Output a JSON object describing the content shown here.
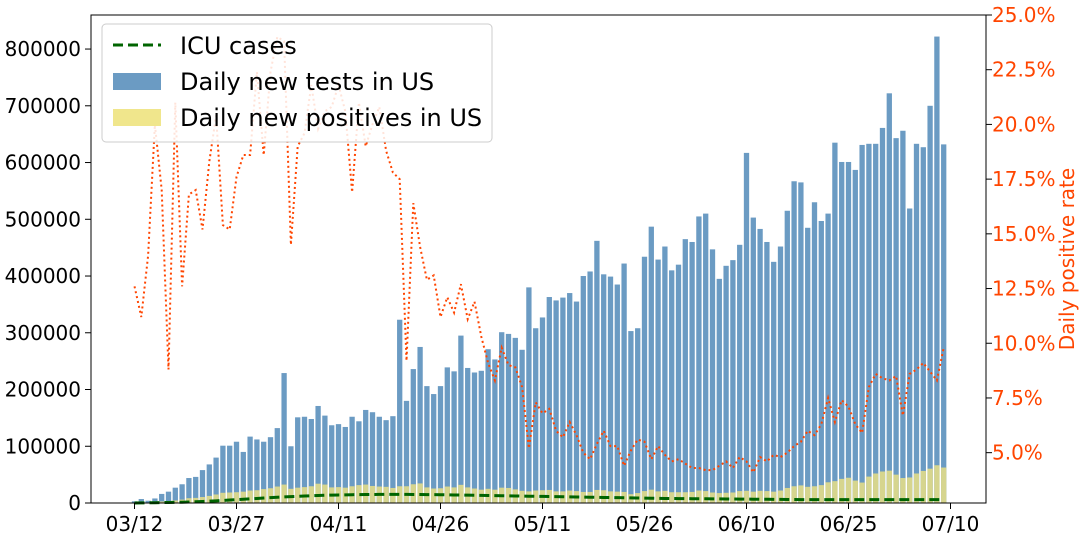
{
  "chart_data": {
    "type": "bar",
    "title": "",
    "xlabel": "",
    "ylabel_left": "",
    "ylabel_right": "Daily positive rate",
    "start_date": "03/12",
    "x_tick_labels": [
      "03/12",
      "03/27",
      "04/11",
      "04/26",
      "05/11",
      "05/26",
      "06/10",
      "06/25",
      "07/10"
    ],
    "ylim_left": [
      0,
      860000
    ],
    "yticks_left": [
      "0",
      "100000",
      "200000",
      "300000",
      "400000",
      "500000",
      "600000",
      "700000",
      "800000"
    ],
    "ylim_right": [
      2.7,
      25.0
    ],
    "yticks_right": [
      "5.0%",
      "7.5%",
      "10.0%",
      "12.5%",
      "15.0%",
      "17.5%",
      "20.0%",
      "22.5%",
      "25.0%"
    ],
    "legend": {
      "position": "top-left",
      "entries": [
        "ICU cases",
        "Daily new tests in US",
        "Daily new positives in US"
      ]
    },
    "colors": {
      "tests": "#6b9bc3",
      "positives": "#d6d58e",
      "positives_legend": "#f0e68c",
      "icu": "#006400",
      "rate": "#ff4500"
    },
    "series": [
      {
        "name": "Daily new tests in US",
        "kind": "bar",
        "values": [
          3000,
          7000,
          4000,
          8000,
          16000,
          20000,
          27000,
          33000,
          44000,
          46000,
          58000,
          68000,
          80000,
          101000,
          101000,
          108000,
          90000,
          117000,
          112000,
          108000,
          116000,
          132000,
          229000,
          100000,
          151000,
          152000,
          148000,
          171000,
          154000,
          137000,
          139000,
          134000,
          152000,
          144000,
          164000,
          160000,
          152000,
          146000,
          153000,
          323000,
          180000,
          236000,
          275000,
          206000,
          192000,
          206000,
          239000,
          232000,
          295000,
          238000,
          230000,
          233000,
          271000,
          253000,
          301000,
          298000,
          291000,
          270000,
          380000,
          308000,
          327000,
          363000,
          357000,
          362000,
          370000,
          355000,
          400000,
          408000,
          462000,
          403000,
          399000,
          385000,
          422000,
          303000,
          308000,
          434000,
          487000,
          429000,
          452000,
          410000,
          420000,
          465000,
          460000,
          505000,
          510000,
          447000,
          395000,
          418000,
          428000,
          455000,
          617000,
          503000,
          483000,
          460000,
          425000,
          452000,
          515000,
          567000,
          565000,
          485000,
          530000,
          497000,
          510000,
          635000,
          601000,
          601000,
          587000,
          631000,
          633000,
          633000,
          661000,
          722000,
          643000,
          656000,
          519000,
          633000,
          627000,
          700000,
          822000,
          632000
        ]
      },
      {
        "name": "Daily new positives in US",
        "kind": "bar",
        "values": [
          400,
          900,
          700,
          1600,
          2700,
          3500,
          4500,
          6000,
          8500,
          9000,
          10500,
          12500,
          15000,
          18000,
          18500,
          19000,
          20000,
          22000,
          22500,
          24500,
          26000,
          29000,
          32500,
          25000,
          27000,
          28000,
          29500,
          34000,
          32500,
          27500,
          28000,
          27000,
          29500,
          31500,
          32500,
          30000,
          29000,
          28500,
          26500,
          29500,
          29500,
          33000,
          34500,
          27500,
          25500,
          26000,
          29000,
          27500,
          32000,
          27500,
          25500,
          23500,
          25000,
          23500,
          27000,
          26500,
          24000,
          21500,
          20500,
          22000,
          22500,
          23000,
          20500,
          20500,
          22000,
          21000,
          19500,
          19500,
          23000,
          22500,
          20500,
          20000,
          19500,
          15500,
          17500,
          21000,
          23500,
          20500,
          21500,
          19000,
          19000,
          19000,
          19500,
          22000,
          21000,
          18500,
          17500,
          18000,
          18500,
          21000,
          21500,
          20000,
          21500,
          21000,
          20000,
          22000,
          26500,
          29500,
          31000,
          28500,
          29500,
          31500,
          36500,
          38500,
          42500,
          44500,
          39500,
          36000,
          46500,
          52000,
          55500,
          57000,
          50000,
          44000,
          45000,
          52000,
          56500,
          60500,
          66500,
          62500
        ]
      },
      {
        "name": "ICU cases",
        "kind": "line",
        "values": [
          100,
          200,
          300,
          500,
          700,
          900,
          1100,
          1400,
          1800,
          2200,
          2700,
          3200,
          3800,
          4500,
          5200,
          5900,
          6600,
          7300,
          8000,
          8800,
          9500,
          10200,
          10800,
          11300,
          11800,
          12300,
          12800,
          13200,
          13600,
          13900,
          14200,
          14400,
          14600,
          14800,
          14900,
          15000,
          15100,
          15200,
          15200,
          15200,
          15100,
          15000,
          14900,
          14800,
          14700,
          14600,
          14400,
          14200,
          14000,
          13800,
          13600,
          13400,
          13200,
          13000,
          12800,
          12600,
          12400,
          12200,
          12000,
          11800,
          11600,
          11400,
          11200,
          11000,
          10800,
          10600,
          10400,
          10200,
          10000,
          9800,
          9600,
          9400,
          9200,
          9000,
          8800,
          8600,
          8400,
          8200,
          8000,
          7900,
          7800,
          7700,
          7600,
          7500,
          7400,
          7300,
          7200,
          7100,
          7000,
          6900,
          6800,
          6700,
          6600,
          6500,
          6400,
          6300,
          6200,
          6100,
          6000,
          6000,
          6000,
          6000,
          6000,
          6000,
          6000,
          6000,
          6000,
          6000,
          6000,
          6000,
          6000,
          6000,
          6000,
          6000,
          6000,
          6000,
          6000,
          6000,
          6000,
          6000
        ]
      },
      {
        "name": "Daily positive rate",
        "kind": "line",
        "axis": "right",
        "values": [
          12.6,
          11.2,
          14.0,
          20.0,
          17.0,
          8.8,
          21.0,
          12.6,
          16.8,
          17.0,
          15.2,
          18.3,
          20.4,
          15.4,
          15.2,
          17.6,
          18.6,
          18.6,
          22.4,
          18.6,
          22.4,
          24.0,
          23.8,
          14.5,
          19.0,
          19.6,
          21.8,
          19.8,
          20.6,
          20.8,
          21.8,
          20.6,
          16.9,
          21.0,
          19.0,
          20.0,
          20.8,
          18.8,
          17.8,
          17.5,
          9.2,
          16.4,
          14.4,
          12.9,
          13.1,
          11.2,
          12.1,
          11.4,
          12.7,
          11.1,
          11.9,
          10.3,
          9.1,
          8.3,
          9.8,
          9.0,
          8.9,
          8.0,
          5.2,
          7.3,
          6.8,
          7.0,
          6.0,
          5.7,
          6.4,
          5.8,
          5.0,
          4.7,
          5.4,
          6.0,
          5.3,
          5.3,
          4.4,
          5.1,
          5.6,
          5.5,
          4.7,
          5.3,
          4.9,
          4.6,
          4.7,
          4.5,
          4.3,
          4.3,
          4.2,
          4.2,
          4.4,
          4.6,
          4.3,
          4.8,
          4.6,
          4.1,
          4.8,
          4.6,
          4.9,
          4.8,
          5.0,
          5.3,
          5.5,
          6.0,
          5.8,
          6.3,
          7.5,
          6.4,
          7.4,
          7.1,
          6.3,
          5.9,
          8.0,
          8.6,
          8.4,
          8.3,
          8.5,
          6.7,
          8.6,
          8.8,
          9.1,
          8.7,
          8.3,
          9.8
        ]
      }
    ]
  }
}
